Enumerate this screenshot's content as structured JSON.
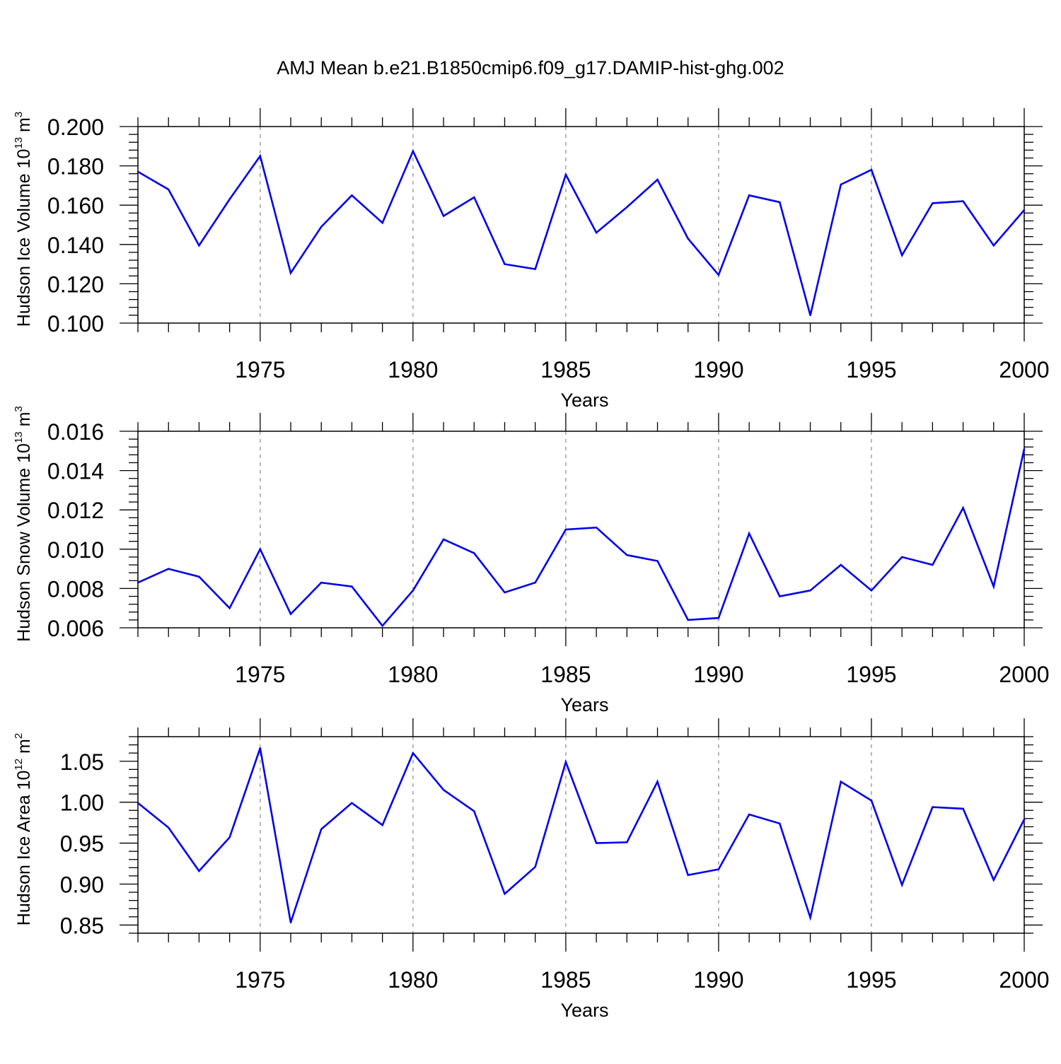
{
  "figure_title": "AMJ Mean b.e21.B1850cmip6.f09_g17.DAMIP-hist-ghg.002",
  "chart_data": [
    {
      "type": "line",
      "ylabel_main": "Hudson Ice Volume 10",
      "ylabel_exp": "13",
      "ylabel_unit": " m",
      "ylabel_unit_exp": "3",
      "xlabel": "Years",
      "xlim": [
        1971,
        2000
      ],
      "ylim": [
        0.1,
        0.2
      ],
      "x_ticks": [
        1975,
        1980,
        1985,
        1990,
        1995,
        2000
      ],
      "x_tick_labels": [
        "1975",
        "1980",
        "1985",
        "1990",
        "1995",
        "2000"
      ],
      "y_ticks": [
        0.1,
        0.12,
        0.14,
        0.16,
        0.18,
        0.2
      ],
      "y_tick_labels": [
        "0.100",
        "0.120",
        "0.140",
        "0.160",
        "0.180",
        "0.200"
      ],
      "grid": "vertical-dashed",
      "line_color": "#0000ee",
      "x": [
        1971,
        1972,
        1973,
        1974,
        1975,
        1976,
        1977,
        1978,
        1979,
        1980,
        1981,
        1982,
        1983,
        1984,
        1985,
        1986,
        1987,
        1988,
        1989,
        1990,
        1991,
        1992,
        1993,
        1994,
        1995,
        1996,
        1997,
        1998,
        1999,
        2000
      ],
      "values": [
        0.177,
        0.168,
        0.1395,
        0.163,
        0.185,
        0.1255,
        0.149,
        0.165,
        0.151,
        0.1875,
        0.1545,
        0.164,
        0.13,
        0.1275,
        0.1755,
        0.146,
        0.159,
        0.173,
        0.143,
        0.1245,
        0.165,
        0.1615,
        0.104,
        0.1705,
        0.178,
        0.1345,
        0.161,
        0.162,
        0.1395,
        0.1575
      ]
    },
    {
      "type": "line",
      "ylabel_main": "Hudson Snow Volume 10",
      "ylabel_exp": "13",
      "ylabel_unit": " m",
      "ylabel_unit_exp": "3",
      "xlabel": "Years",
      "xlim": [
        1971,
        2000
      ],
      "ylim": [
        0.006,
        0.016
      ],
      "x_ticks": [
        1975,
        1980,
        1985,
        1990,
        1995,
        2000
      ],
      "x_tick_labels": [
        "1975",
        "1980",
        "1985",
        "1990",
        "1995",
        "2000"
      ],
      "y_ticks": [
        0.006,
        0.008,
        0.01,
        0.012,
        0.014,
        0.016
      ],
      "y_tick_labels": [
        "0.006",
        "0.008",
        "0.010",
        "0.012",
        "0.014",
        "0.016"
      ],
      "grid": "vertical-dashed",
      "line_color": "#0000ee",
      "x": [
        1971,
        1972,
        1973,
        1974,
        1975,
        1976,
        1977,
        1978,
        1979,
        1980,
        1981,
        1982,
        1983,
        1984,
        1985,
        1986,
        1987,
        1988,
        1989,
        1990,
        1991,
        1992,
        1993,
        1994,
        1995,
        1996,
        1997,
        1998,
        1999,
        2000
      ],
      "values": [
        0.0083,
        0.009,
        0.0086,
        0.007,
        0.01,
        0.0067,
        0.0083,
        0.0081,
        0.0061,
        0.0079,
        0.0105,
        0.0098,
        0.0078,
        0.0083,
        0.011,
        0.0111,
        0.0097,
        0.0094,
        0.0064,
        0.0065,
        0.0108,
        0.0076,
        0.0079,
        0.0092,
        0.0079,
        0.0096,
        0.0092,
        0.0121,
        0.0081,
        0.0151
      ]
    },
    {
      "type": "line",
      "ylabel_main": "Hudson Ice Area 10",
      "ylabel_exp": "12",
      "ylabel_unit": " m",
      "ylabel_unit_exp": "2",
      "xlabel": "Years",
      "xlim": [
        1971,
        2000
      ],
      "ylim": [
        0.84,
        1.08
      ],
      "x_ticks": [
        1975,
        1980,
        1985,
        1990,
        1995,
        2000
      ],
      "x_tick_labels": [
        "1975",
        "1980",
        "1985",
        "1990",
        "1995",
        "2000"
      ],
      "y_ticks": [
        0.85,
        0.9,
        0.95,
        1.0,
        1.05
      ],
      "y_tick_labels": [
        "0.85",
        "0.90",
        "0.95",
        "1.00",
        "1.05"
      ],
      "grid": "vertical-dashed",
      "line_color": "#0000ee",
      "x": [
        1971,
        1972,
        1973,
        1974,
        1975,
        1976,
        1977,
        1978,
        1979,
        1980,
        1981,
        1982,
        1983,
        1984,
        1985,
        1986,
        1987,
        1988,
        1989,
        1990,
        1991,
        1992,
        1993,
        1994,
        1995,
        1996,
        1997,
        1998,
        1999,
        2000
      ],
      "values": [
        0.999,
        0.969,
        0.916,
        0.957,
        1.066,
        0.853,
        0.967,
        0.999,
        0.972,
        1.06,
        1.015,
        0.989,
        0.888,
        0.921,
        1.049,
        0.95,
        0.951,
        1.025,
        0.911,
        0.918,
        0.985,
        0.974,
        0.859,
        1.025,
        1.002,
        0.899,
        0.994,
        0.992,
        0.905,
        0.979
      ]
    }
  ]
}
